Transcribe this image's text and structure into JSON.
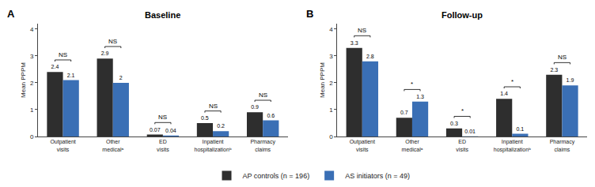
{
  "chart_data": [
    {
      "type": "bar",
      "title": "Baseline",
      "panel_label": "A",
      "categories": [
        "Outpatient\nvisits",
        "Other\nmedicalᵃ",
        "ED\nvisits",
        "Inpatient\nhospitalizationᵇ",
        "Pharmacy\nclaims"
      ],
      "series": [
        {
          "name": "AP controls (n = 196)",
          "color": "#2e2e2e",
          "values": [
            2.4,
            2.9,
            0.07,
            0.5,
            0.9
          ]
        },
        {
          "name": "AS initiators (n = 49)",
          "color": "#3a6fb5",
          "values": [
            2.1,
            2.0,
            0.04,
            0.2,
            0.6
          ]
        }
      ],
      "significance": [
        "NS",
        "NS",
        "NS",
        "NS",
        "NS"
      ],
      "ylabel": "Mean PPPM",
      "ylim": [
        0,
        4.2
      ],
      "yticks": [
        0,
        1,
        2,
        3,
        4
      ],
      "grid": false,
      "data_labels": true,
      "legend": "bottom"
    },
    {
      "type": "bar",
      "title": "Follow-up",
      "panel_label": "B",
      "categories": [
        "Outpatient\nvisits",
        "Other\nmedicalᵃ",
        "ED\nvisits",
        "Inpatient\nhospitalizationᵇ",
        "Pharmacy\nclaims"
      ],
      "series": [
        {
          "name": "AP controls (n = 196)",
          "color": "#2e2e2e",
          "values": [
            3.3,
            0.7,
            0.3,
            1.4,
            2.3
          ]
        },
        {
          "name": "AS initiators (n = 49)",
          "color": "#3a6fb5",
          "values": [
            2.8,
            1.3,
            0.01,
            0.1,
            1.9
          ]
        }
      ],
      "significance": [
        "NS",
        "*",
        "*",
        "*",
        "NS"
      ],
      "ylabel": "Mean PPPM",
      "ylim": [
        0,
        4.2
      ],
      "yticks": [
        0,
        1,
        2,
        3,
        4
      ],
      "grid": false,
      "data_labels": true,
      "legend": "bottom"
    }
  ]
}
